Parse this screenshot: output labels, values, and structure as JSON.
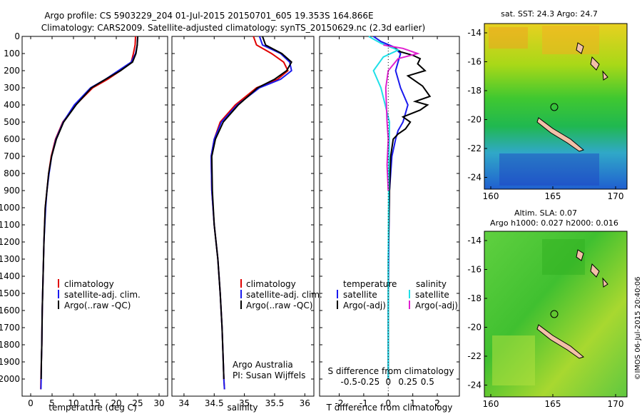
{
  "title_line1": "Argo profile: CS 5903229_204 01-Jul-2015 20150701_605 19.353S 164.866E",
  "title_line2": "Climatology: CARS2009. Satellite-adjusted climatology: synTS_20150629.nc (2.3d earlier)",
  "colors": {
    "climatology": "#e00000",
    "satellite": "#1a1aee",
    "argo": "#000000",
    "sat_s": "#20e0e8",
    "argo_s": "#e020d0"
  },
  "chart_data": [
    {
      "type": "line",
      "id": "temperature",
      "xlabel": "temperature (deg C)",
      "xlim": [
        -2,
        32
      ],
      "ylim": [
        0,
        2100
      ],
      "xticks": [
        0,
        5,
        10,
        15,
        20,
        25,
        30
      ],
      "yticks": [
        0,
        100,
        200,
        300,
        400,
        500,
        600,
        700,
        800,
        900,
        1000,
        1100,
        1200,
        1300,
        1400,
        1500,
        1600,
        1700,
        1800,
        1900,
        2000
      ],
      "legend": [
        "climatology",
        "satellite-adj. clim.",
        "Argo(..raw -QC)"
      ],
      "series": [
        {
          "name": "climatology",
          "color": "#e00000",
          "x": [
            24.5,
            24.4,
            24,
            23.5,
            21,
            18,
            14.5,
            10.5,
            7.5,
            5.8,
            4.8,
            4.2,
            3.8,
            3.4,
            3.1,
            2.9,
            2.7,
            2.6,
            2.5,
            2.4,
            2.35
          ],
          "y": [
            0,
            50,
            100,
            150,
            200,
            250,
            300,
            400,
            500,
            600,
            700,
            800,
            900,
            1000,
            1200,
            1400,
            1600,
            1800,
            1900,
            2000,
            2060
          ]
        },
        {
          "name": "satellite",
          "color": "#1a1aee",
          "x": [
            25,
            24.9,
            24.5,
            23.5,
            20.5,
            17.5,
            14,
            10.2,
            7.6,
            5.9,
            4.9,
            4.3,
            3.8,
            3.5,
            3.1,
            2.9,
            2.7,
            2.6,
            2.5,
            2.45,
            2.4
          ],
          "y": [
            0,
            50,
            100,
            150,
            200,
            250,
            300,
            400,
            500,
            600,
            700,
            800,
            900,
            1000,
            1200,
            1400,
            1600,
            1800,
            1900,
            2000,
            2060
          ]
        },
        {
          "name": "argo",
          "color": "#000000",
          "x": [
            25,
            24.9,
            24.6,
            23.8,
            21,
            17.5,
            14.2,
            10.6,
            7.7,
            6.0,
            4.9,
            4.2,
            3.8,
            3.4,
            3.1,
            2.9,
            2.7,
            2.6,
            2.5,
            2.45
          ],
          "y": [
            0,
            50,
            100,
            150,
            200,
            250,
            300,
            400,
            500,
            600,
            700,
            800,
            900,
            1000,
            1200,
            1400,
            1600,
            1800,
            1900,
            2000
          ]
        }
      ]
    },
    {
      "type": "line",
      "id": "salinity",
      "xlabel": "salinity",
      "xlim": [
        33.8,
        36.15
      ],
      "ylim": [
        0,
        2100
      ],
      "xticks": [
        34,
        34.5,
        35,
        35.5,
        36
      ],
      "legend": [
        "climatology",
        "satellite-adj. clim.",
        "Argo(..raw -QC)"
      ],
      "annotation": [
        "Argo Australia",
        "PI: Susan Wijffels"
      ],
      "series": [
        {
          "name": "climatology",
          "color": "#e00000",
          "x": [
            35.15,
            35.2,
            35.45,
            35.65,
            35.72,
            35.55,
            35.2,
            34.85,
            34.6,
            34.5,
            34.45,
            34.46,
            34.5,
            34.56,
            34.6,
            34.63,
            34.65,
            34.66,
            34.67
          ],
          "y": [
            0,
            50,
            100,
            150,
            200,
            250,
            300,
            400,
            500,
            600,
            700,
            900,
            1100,
            1300,
            1500,
            1700,
            1900,
            2000,
            2060
          ]
        },
        {
          "name": "satellite",
          "color": "#1a1aee",
          "x": [
            35.25,
            35.3,
            35.6,
            35.75,
            35.78,
            35.6,
            35.25,
            34.88,
            34.62,
            34.5,
            34.45,
            34.46,
            34.5,
            34.56,
            34.6,
            34.63,
            34.65,
            34.66,
            34.67
          ],
          "y": [
            0,
            50,
            100,
            150,
            200,
            250,
            300,
            400,
            500,
            600,
            700,
            900,
            1100,
            1300,
            1500,
            1700,
            1900,
            2000,
            2060
          ]
        },
        {
          "name": "argo",
          "color": "#000000",
          "x": [
            35.3,
            35.35,
            35.62,
            35.78,
            35.7,
            35.5,
            35.22,
            34.9,
            34.65,
            34.52,
            34.46,
            34.47,
            34.5,
            34.56,
            34.6,
            34.63,
            34.65,
            34.66
          ],
          "y": [
            0,
            50,
            100,
            150,
            200,
            250,
            300,
            400,
            500,
            600,
            700,
            900,
            1100,
            1300,
            1500,
            1700,
            1900,
            2000
          ]
        }
      ]
    },
    {
      "type": "line",
      "id": "difference",
      "xlabel": "T difference from climatology",
      "xlabel_top": "S difference from climatology",
      "xlim": [
        -2.8,
        2.9
      ],
      "ylim": [
        0,
        2100
      ],
      "xticks": [
        -2,
        -1,
        0,
        1,
        2
      ],
      "xticks_top": [
        "-0.5",
        "-0.25",
        "0",
        "0.25",
        "0.5"
      ],
      "legend_left_title": "temperature",
      "legend_right_title": "salinity",
      "legend_left": [
        "satellite",
        "Argo(-adj)"
      ],
      "legend_right": [
        "satellite",
        "Argo(-adj)"
      ],
      "series": [
        {
          "name": "temperature satellite",
          "color": "#1a1aee",
          "x": [
            -0.6,
            -0.3,
            0.2,
            0.5,
            0.4,
            0.3,
            0.5,
            0.8,
            0.6,
            0.4,
            0.3,
            0.15,
            0.05,
            0.02,
            0.0,
            0.0
          ],
          "y": [
            0,
            30,
            60,
            100,
            150,
            200,
            300,
            400,
            500,
            550,
            600,
            700,
            900,
            1200,
            1600,
            2000
          ]
        },
        {
          "name": "temperature argo",
          "color": "#000000",
          "x": [
            0.2,
            0.5,
            1.0,
            1.3,
            1.2,
            1.5,
            0.8,
            1.4,
            1.7,
            1.1,
            1.6,
            1.3,
            0.6,
            0.9,
            0.7,
            0.4,
            0.2,
            0.1,
            0.05,
            0.0,
            0.0
          ],
          "y": [
            60,
            90,
            110,
            130,
            160,
            200,
            230,
            290,
            350,
            380,
            400,
            430,
            470,
            500,
            540,
            570,
            600,
            700,
            900,
            1300,
            2000
          ]
        },
        {
          "name": "salinity satellite",
          "color": "#20e0e8",
          "x": [
            -0.8,
            -0.3,
            0.4,
            -0.2,
            -0.6,
            -0.3,
            0.05,
            0.02,
            0.0,
            0.0
          ],
          "y": [
            0,
            40,
            80,
            120,
            200,
            300,
            500,
            800,
            1300,
            2000
          ]
        },
        {
          "name": "salinity argo",
          "color": "#e020d0",
          "x": [
            -0.2,
            0.6,
            1.2,
            0.4,
            0.0,
            -0.1,
            -0.05,
            0.0,
            -0.05,
            0.0
          ],
          "y": [
            50,
            70,
            100,
            130,
            200,
            300,
            500,
            600,
            750,
            900
          ]
        }
      ]
    },
    {
      "type": "heatmap",
      "id": "sst_map",
      "title": "sat. SST: 24.3 Argo: 24.7",
      "xticks": [
        "160",
        "165",
        "170"
      ],
      "yticks": [
        "-14",
        "-16",
        "-18",
        "-20",
        "-22",
        "-24"
      ]
    },
    {
      "type": "heatmap",
      "id": "sla_map",
      "title_line1": "Altim. SLA: 0.07",
      "title_line2": "Argo h1000: 0.027 h2000: 0.016",
      "xticks": [
        "160",
        "165",
        "170"
      ],
      "yticks": [
        "-14",
        "-16",
        "-18",
        "-20",
        "-22",
        "-24"
      ]
    }
  ],
  "watermark": "©IMOS 06-Jul-2015 20:40:06"
}
